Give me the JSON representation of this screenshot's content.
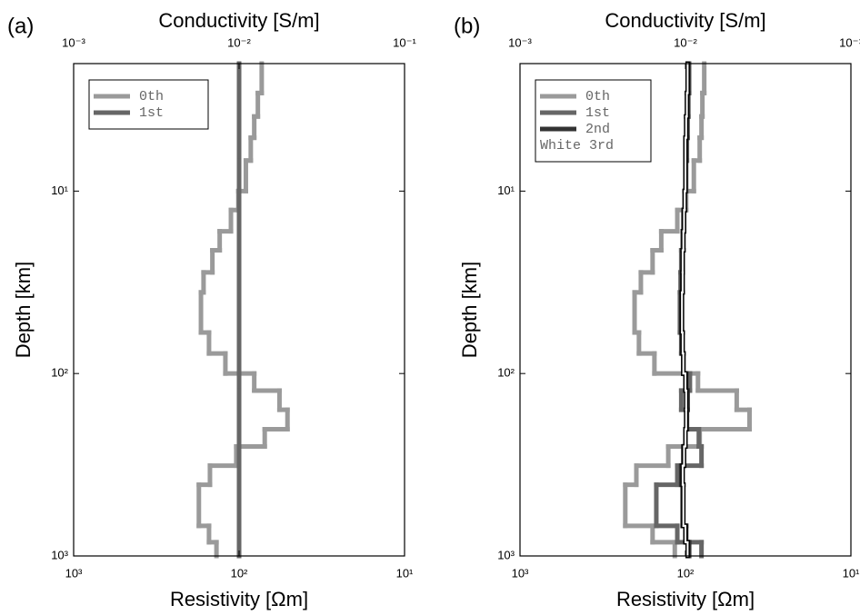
{
  "chart_data": [
    {
      "type": "step",
      "label": "(a)",
      "xlabel": "Resistivity [Ωm]",
      "x2label": "Conductivity [S/m]",
      "ylabel": "Depth [km]",
      "xscale": "log",
      "yscale": "log",
      "legend": "upper left",
      "xlim": [
        1000,
        10
      ],
      "xticks": [
        {
          "value": 1000,
          "label": "10³"
        },
        {
          "value": 100,
          "label": "10²"
        },
        {
          "value": 10,
          "label": "10¹"
        }
      ],
      "x2lim": [
        0.001,
        0.1
      ],
      "x2ticks": [
        {
          "value": 0.001,
          "label": "10⁻³"
        },
        {
          "value": 0.01,
          "label": "10⁻²"
        },
        {
          "value": 0.1,
          "label": "10⁻¹"
        }
      ],
      "ylim": [
        2,
        1000
      ],
      "yticks": [
        {
          "value": 10,
          "label": "10¹"
        },
        {
          "value": 100,
          "label": "10²"
        },
        {
          "value": 1000,
          "label": "10³"
        }
      ],
      "depth_edges": [
        2,
        2.9,
        3.9,
        5.1,
        6.8,
        10,
        12.7,
        16.6,
        21.1,
        27.9,
        35.9,
        59.6,
        77.6,
        100,
        124,
        158,
        202,
        251,
        320,
        407,
        684,
        841,
        1000
      ],
      "series": [
        {
          "name": "0th",
          "color": "#9a9a9a",
          "values": [
            73,
            77,
            81,
            85,
            91,
            101,
            112,
            131,
            145,
            164,
            170,
            152,
            121,
            81,
            57,
            51,
            70,
            104,
            150,
            175,
            152,
            137
          ]
        },
        {
          "name": "1st",
          "color": "#666666",
          "values": [
            100,
            100,
            100,
            100,
            100,
            100,
            100,
            100,
            100,
            100,
            100,
            100,
            100,
            100,
            100,
            100,
            100,
            100,
            100,
            100,
            100,
            100
          ]
        }
      ]
    },
    {
      "type": "step",
      "label": "(b)",
      "xlabel": "Resistivity [Ωm]",
      "x2label": "Conductivity [S/m]",
      "ylabel": "Depth [km]",
      "xscale": "log",
      "yscale": "log",
      "legend": "upper left",
      "xlim": [
        1000,
        10
      ],
      "xticks": [
        {
          "value": 1000,
          "label": "10³"
        },
        {
          "value": 100,
          "label": "10²"
        },
        {
          "value": 10,
          "label": "10¹"
        }
      ],
      "x2lim": [
        0.001,
        0.1
      ],
      "x2ticks": [
        {
          "value": 0.001,
          "label": "10⁻³"
        },
        {
          "value": 0.01,
          "label": "10⁻²"
        },
        {
          "value": 0.1,
          "label": "10⁻¹"
        }
      ],
      "ylim": [
        2,
        1000
      ],
      "yticks": [
        {
          "value": 10,
          "label": "10¹"
        },
        {
          "value": 100,
          "label": "10²"
        },
        {
          "value": 1000,
          "label": "10³"
        }
      ],
      "depth_edges": [
        2,
        2.9,
        3.9,
        5.1,
        6.8,
        10,
        12.7,
        16.6,
        21.1,
        27.9,
        35.9,
        59.6,
        77.6,
        100,
        124,
        158,
        202,
        251,
        320,
        407,
        684,
        841,
        1000
      ],
      "series": [
        {
          "name": "0th",
          "color": "#9a9a9a",
          "values": [
            77,
            79,
            80,
            82,
            89,
            99,
            112,
            140,
            158,
            186,
            203,
            191,
            154,
            84,
            49,
            41,
            82,
            127,
            198,
            231,
            158,
            116
          ]
        },
        {
          "name": "1st",
          "color": "#666666",
          "values": [
            95,
            96,
            97,
            98,
            99,
            101,
            103,
            104,
            106,
            107,
            108,
            106,
            103,
            94,
            106,
            98,
            83,
            80,
            112,
            150,
            112,
            80
          ]
        },
        {
          "name": "2nd",
          "color": "#333333",
          "values": [
            96,
            97,
            98,
            99,
            100,
            101,
            102,
            103,
            104,
            105,
            106,
            105,
            103,
            99,
            97,
            98,
            100,
            103,
            106,
            104,
            99,
            95
          ]
        },
        {
          "name": "White 3rd",
          "color": "#ffffff",
          "outline": "#000000",
          "values": [
            97,
            98,
            99,
            100,
            100,
            101,
            102,
            103,
            104,
            104,
            105,
            104,
            103,
            100,
            99,
            99,
            100,
            102,
            104,
            103,
            100,
            97
          ]
        }
      ]
    }
  ]
}
